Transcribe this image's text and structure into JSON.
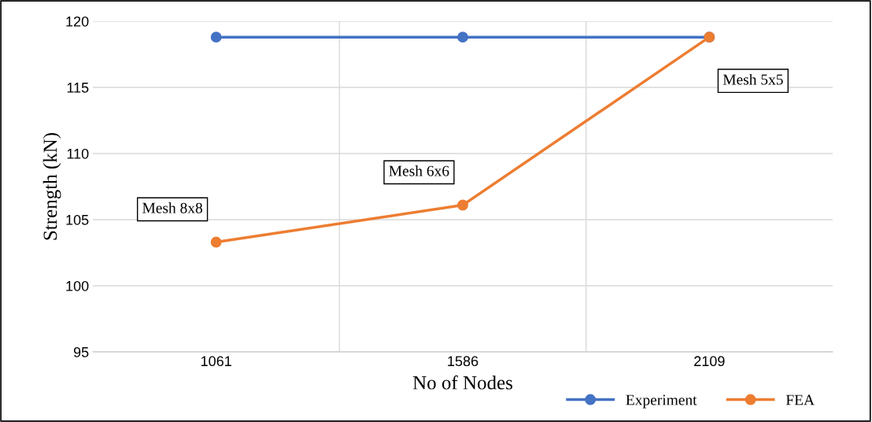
{
  "chart_data": {
    "type": "line",
    "xlabel": "No of Nodes",
    "ylabel": "Strength (kN)",
    "categories": [
      "1061",
      "1586",
      "2109"
    ],
    "series": [
      {
        "name": "Experiment",
        "color": "#4472c4",
        "values": [
          118.8,
          118.8,
          118.8
        ]
      },
      {
        "name": "FEA",
        "color": "#ed7d31",
        "values": [
          103.3,
          106.1,
          118.8
        ]
      }
    ],
    "ylim": [
      95,
      120
    ],
    "yticks": [
      95,
      100,
      105,
      110,
      115,
      120
    ],
    "grid": true,
    "legend": "bottom right",
    "marker": "circle",
    "line_style": "solid",
    "annotations": [
      {
        "text": "Mesh 8x8",
        "x": "1061",
        "y": 103.3
      },
      {
        "text": "Mesh 6x6",
        "x": "1586",
        "y": 106.1
      },
      {
        "text": "Mesh 5x5",
        "x": "2109",
        "y": 118.8
      }
    ]
  }
}
